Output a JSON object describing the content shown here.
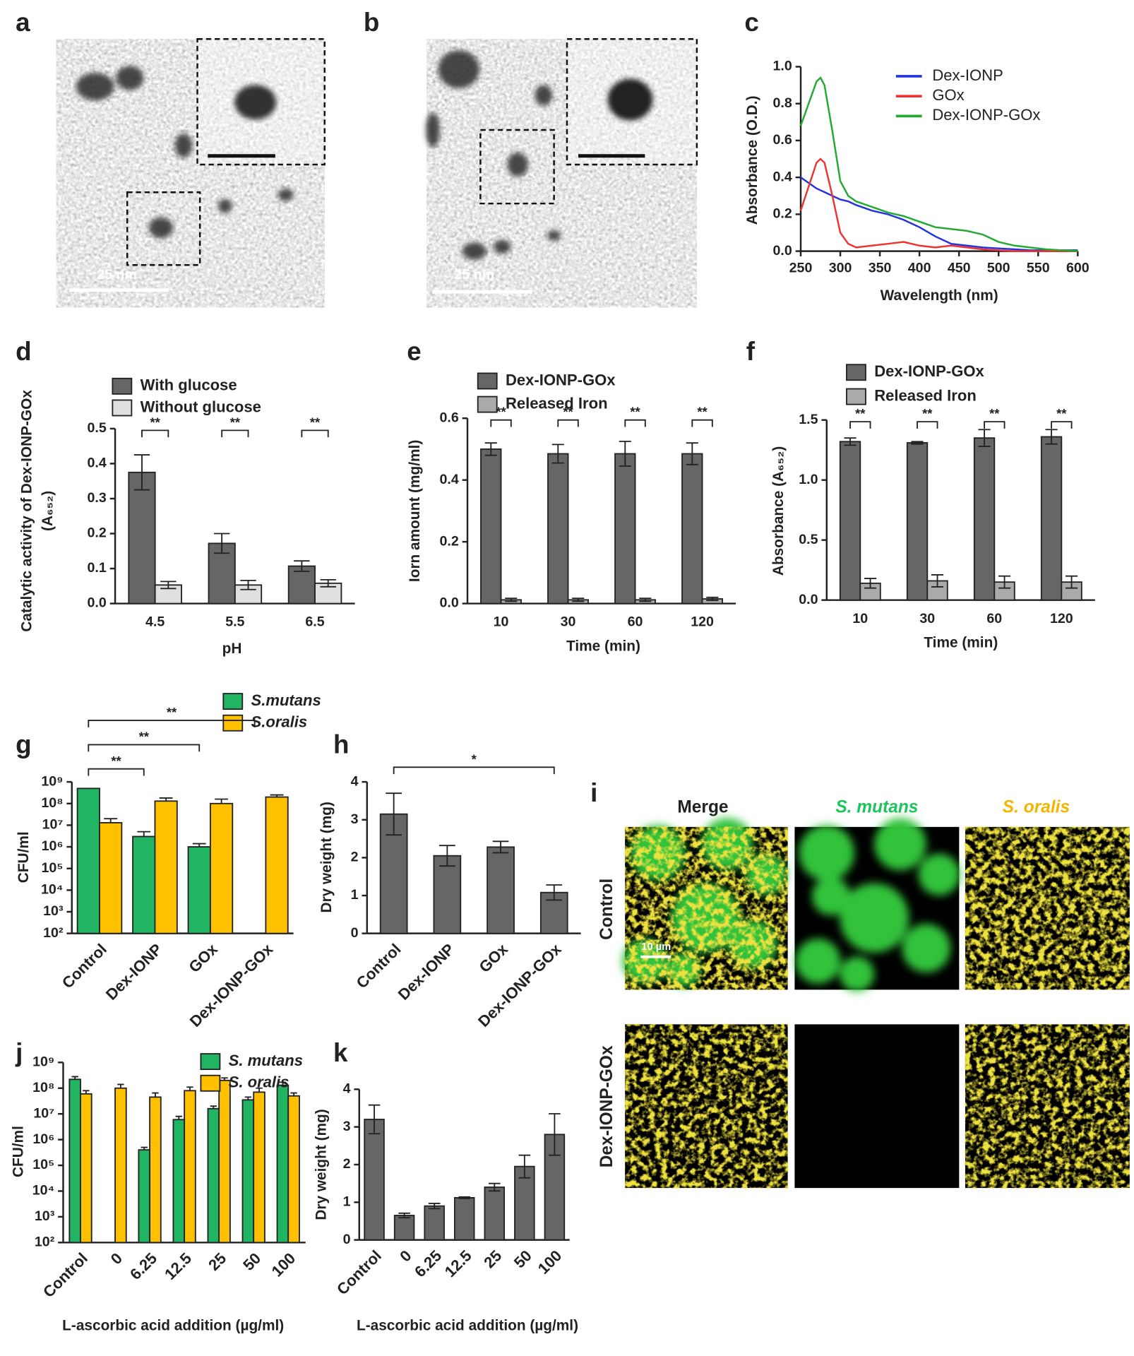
{
  "images": {
    "a": {
      "label": "a",
      "scale_bar": "25 nm"
    },
    "b": {
      "label": "b",
      "scale_bar": "25 nm"
    },
    "i": {
      "label": "i",
      "columns": [
        "Merge",
        "S. mutans",
        "S. oralis"
      ],
      "rows": [
        "Control",
        "Dex-IONP-GOx"
      ],
      "scale_bar": "10 µm"
    }
  },
  "chart_data": [
    {
      "label": "c",
      "type": "line",
      "xlabel": "Wavelength (nm)",
      "ylabel": "Absorbance (O.D.)",
      "xlim": [
        250,
        600
      ],
      "xticks": [
        250,
        300,
        350,
        400,
        450,
        500,
        550,
        600
      ],
      "ylim": [
        0,
        1
      ],
      "yticks": [
        {
          "value": 0,
          "label": "0.0"
        },
        0.2,
        0.4,
        0.6,
        0.8,
        {
          "value": 1,
          "label": "1.0"
        }
      ],
      "x": [
        250,
        260,
        270,
        275,
        280,
        290,
        300,
        310,
        320,
        340,
        360,
        380,
        400,
        420,
        440,
        460,
        480,
        500,
        520,
        540,
        560,
        580,
        600
      ],
      "series": [
        {
          "name": "Dex-IONP",
          "color": "#2233dd",
          "values": [
            0.4,
            0.37,
            0.34,
            0.33,
            0.32,
            0.3,
            0.28,
            0.27,
            0.25,
            0.22,
            0.2,
            0.17,
            0.13,
            0.08,
            0.04,
            0.03,
            0.02,
            0.015,
            0.01,
            0.005,
            0.005,
            0.005,
            0.005
          ]
        },
        {
          "name": "GOx",
          "color": "#ee3333",
          "values": [
            0.22,
            0.35,
            0.48,
            0.5,
            0.48,
            0.3,
            0.1,
            0.04,
            0.02,
            0.03,
            0.04,
            0.05,
            0.03,
            0.02,
            0.03,
            0.02,
            0.01,
            0.005,
            0,
            0,
            0,
            0,
            0
          ]
        },
        {
          "name": "Dex-IONP-GOx",
          "color": "#22aa33",
          "values": [
            0.68,
            0.8,
            0.92,
            0.94,
            0.9,
            0.65,
            0.38,
            0.3,
            0.27,
            0.24,
            0.21,
            0.19,
            0.16,
            0.13,
            0.12,
            0.11,
            0.09,
            0.05,
            0.03,
            0.02,
            0.01,
            0.005,
            0
          ]
        }
      ]
    },
    {
      "label": "d",
      "type": "bar",
      "xlabel": "pH",
      "ylabel": [
        "Catalytic activity of Dex-IONP-GOx",
        "(A₆₅₂)"
      ],
      "categories": [
        "4.5",
        "5.5",
        "6.5"
      ],
      "ylim": [
        0,
        0.5
      ],
      "yticks": [
        {
          "value": 0,
          "label": "0.0"
        },
        0.1,
        0.2,
        0.3,
        0.4,
        0.5
      ],
      "series": [
        {
          "name": "With glucose",
          "color": "#666666",
          "values": [
            0.375,
            0.172,
            0.107
          ],
          "errors": [
            0.05,
            0.028,
            0.015
          ]
        },
        {
          "name": "Without glucose",
          "color": "#e0e0e0",
          "values": [
            0.053,
            0.053,
            0.058
          ],
          "errors": [
            0.01,
            0.013,
            0.01
          ]
        }
      ],
      "significance": [
        "**",
        "**",
        "**"
      ]
    },
    {
      "label": "e",
      "type": "bar",
      "xlabel": "Time (min)",
      "ylabel": "Iorn amount (mg/ml)",
      "categories": [
        "10",
        "30",
        "60",
        "120"
      ],
      "ylim": [
        0,
        0.6
      ],
      "yticks": [
        {
          "value": 0,
          "label": "0.0"
        },
        0.2,
        0.4,
        0.6
      ],
      "series": [
        {
          "name": "Dex-IONP-GOx",
          "color": "#666666",
          "values": [
            0.5,
            0.485,
            0.485,
            0.485
          ],
          "errors": [
            0.02,
            0.03,
            0.04,
            0.035
          ]
        },
        {
          "name": "Released Iron",
          "color": "#aaaaaa",
          "values": [
            0.012,
            0.012,
            0.012,
            0.015
          ],
          "errors": [
            0.005,
            0.005,
            0.005,
            0.005
          ]
        }
      ],
      "significance": [
        "**",
        "**",
        "**",
        "**"
      ]
    },
    {
      "label": "f",
      "type": "bar",
      "xlabel": "Time (min)",
      "ylabel": "Absorbance (A₆₅₂)",
      "categories": [
        "10",
        "30",
        "60",
        "120"
      ],
      "ylim": [
        0,
        1.5
      ],
      "yticks": [
        {
          "value": 0,
          "label": "0.0"
        },
        0.5,
        {
          "value": 1,
          "label": "1.0"
        },
        1.5
      ],
      "series": [
        {
          "name": "Dex-IONP-GOx",
          "color": "#666666",
          "values": [
            1.32,
            1.31,
            1.35,
            1.36
          ],
          "errors": [
            0.03,
            0.01,
            0.07,
            0.06
          ]
        },
        {
          "name": "Released Iron",
          "color": "#aaaaaa",
          "values": [
            0.14,
            0.16,
            0.15,
            0.15
          ],
          "errors": [
            0.04,
            0.05,
            0.05,
            0.05
          ]
        }
      ],
      "significance": [
        "**",
        "**",
        "**",
        "**"
      ]
    },
    {
      "label": "g",
      "type": "bar",
      "log_scale": true,
      "ylabel": "CFU/ml",
      "categories": [
        "Control",
        "Dex-IONP",
        "GOx",
        "Dex-IONP-GOx"
      ],
      "ylim": [
        100,
        1000000000
      ],
      "yticks": [
        {
          "value": 100,
          "label": "10²"
        },
        {
          "value": 1000,
          "label": "10³"
        },
        {
          "value": 10000,
          "label": "10⁴"
        },
        {
          "value": 100000,
          "label": "10⁵"
        },
        {
          "value": 1000000,
          "label": "10⁶"
        },
        {
          "value": 10000000,
          "label": "10⁷"
        },
        {
          "value": 100000000,
          "label": "10⁸"
        },
        {
          "value": 1000000000,
          "label": "10⁹"
        }
      ],
      "series": [
        {
          "name": "S.mutans",
          "color": "#21b462",
          "values": [
            500000000.0,
            3000000.0,
            1000000.0,
            null
          ],
          "errors": [
            null,
            2000000.0,
            400000.0,
            null
          ]
        },
        {
          "name": "S.oralis",
          "color": "#ffc000",
          "values": [
            13000000.0,
            130000000.0,
            100000000.0,
            200000000.0
          ],
          "errors": [
            7000000.0,
            50000000.0,
            60000000.0,
            50000000.0
          ]
        }
      ],
      "significance": [
        {
          "label": "**",
          "from": "Control",
          "to": "Dex-IONP"
        },
        {
          "label": "**",
          "from": "Control",
          "to": "GOx"
        },
        {
          "label": "**",
          "from": "Control",
          "to": "Dex-IONP-GOx"
        }
      ]
    },
    {
      "label": "h",
      "type": "bar",
      "ylabel": "Dry weight (mg)",
      "categories": [
        "Control",
        "Dex-IONP",
        "GOx",
        "Dex-IONP-GOx"
      ],
      "values": [
        3.15,
        2.05,
        2.28,
        1.08
      ],
      "errors": [
        0.55,
        0.27,
        0.15,
        0.2
      ],
      "color": "#666666",
      "ylim": [
        0,
        4
      ],
      "yticks": [
        0,
        1,
        2,
        3,
        4
      ],
      "significance": [
        {
          "label": "*",
          "from": "Control",
          "to": "Dex-IONP-GOx"
        }
      ]
    },
    {
      "label": "j",
      "type": "bar",
      "log_scale": true,
      "ylabel": "CFU/ml",
      "xlabel": "L-ascorbic acid addition (µg/ml)",
      "categories": [
        "Control",
        "0",
        "6.25",
        "12.5",
        "25",
        "50",
        "100"
      ],
      "ylim": [
        100,
        1000000000
      ],
      "yticks": [
        {
          "value": 100,
          "label": "10²"
        },
        {
          "value": 1000,
          "label": "10³"
        },
        {
          "value": 10000,
          "label": "10⁴"
        },
        {
          "value": 100000,
          "label": "10⁵"
        },
        {
          "value": 1000000,
          "label": "10⁶"
        },
        {
          "value": 10000000,
          "label": "10⁷"
        },
        {
          "value": 100000000,
          "label": "10⁸"
        },
        {
          "value": 1000000000,
          "label": "10⁹"
        }
      ],
      "series": [
        {
          "name": "S. mutans",
          "color": "#21b462",
          "values": [
            220000000.0,
            null,
            400000.0,
            6000000.0,
            16000000.0,
            35000000.0,
            130000000.0
          ],
          "errors": [
            60000000.0,
            null,
            100000.0,
            2000000.0,
            4000000.0,
            10000000.0,
            40000000.0
          ]
        },
        {
          "name": "S. oralis",
          "color": "#ffc000",
          "values": [
            60000000.0,
            100000000.0,
            45000000.0,
            80000000.0,
            200000000.0,
            70000000.0,
            50000000.0
          ],
          "errors": [
            20000000.0,
            40000000.0,
            20000000.0,
            30000000.0,
            50000000.0,
            30000000.0,
            15000000.0
          ]
        }
      ]
    },
    {
      "label": "k",
      "type": "bar",
      "ylabel": "Dry weight (mg)",
      "xlabel": "L-ascorbic acid addition (µg/ml)",
      "categories": [
        "Control",
        "0",
        "6.25",
        "12.5",
        "25",
        "50",
        "100"
      ],
      "values": [
        3.2,
        0.65,
        0.9,
        1.12,
        1.4,
        1.95,
        2.8
      ],
      "errors": [
        0.38,
        0.06,
        0.07,
        0.02,
        0.1,
        0.3,
        0.55
      ],
      "color": "#666666",
      "ylim": [
        0,
        4
      ],
      "yticks": [
        0,
        1,
        2,
        3,
        4
      ]
    }
  ]
}
